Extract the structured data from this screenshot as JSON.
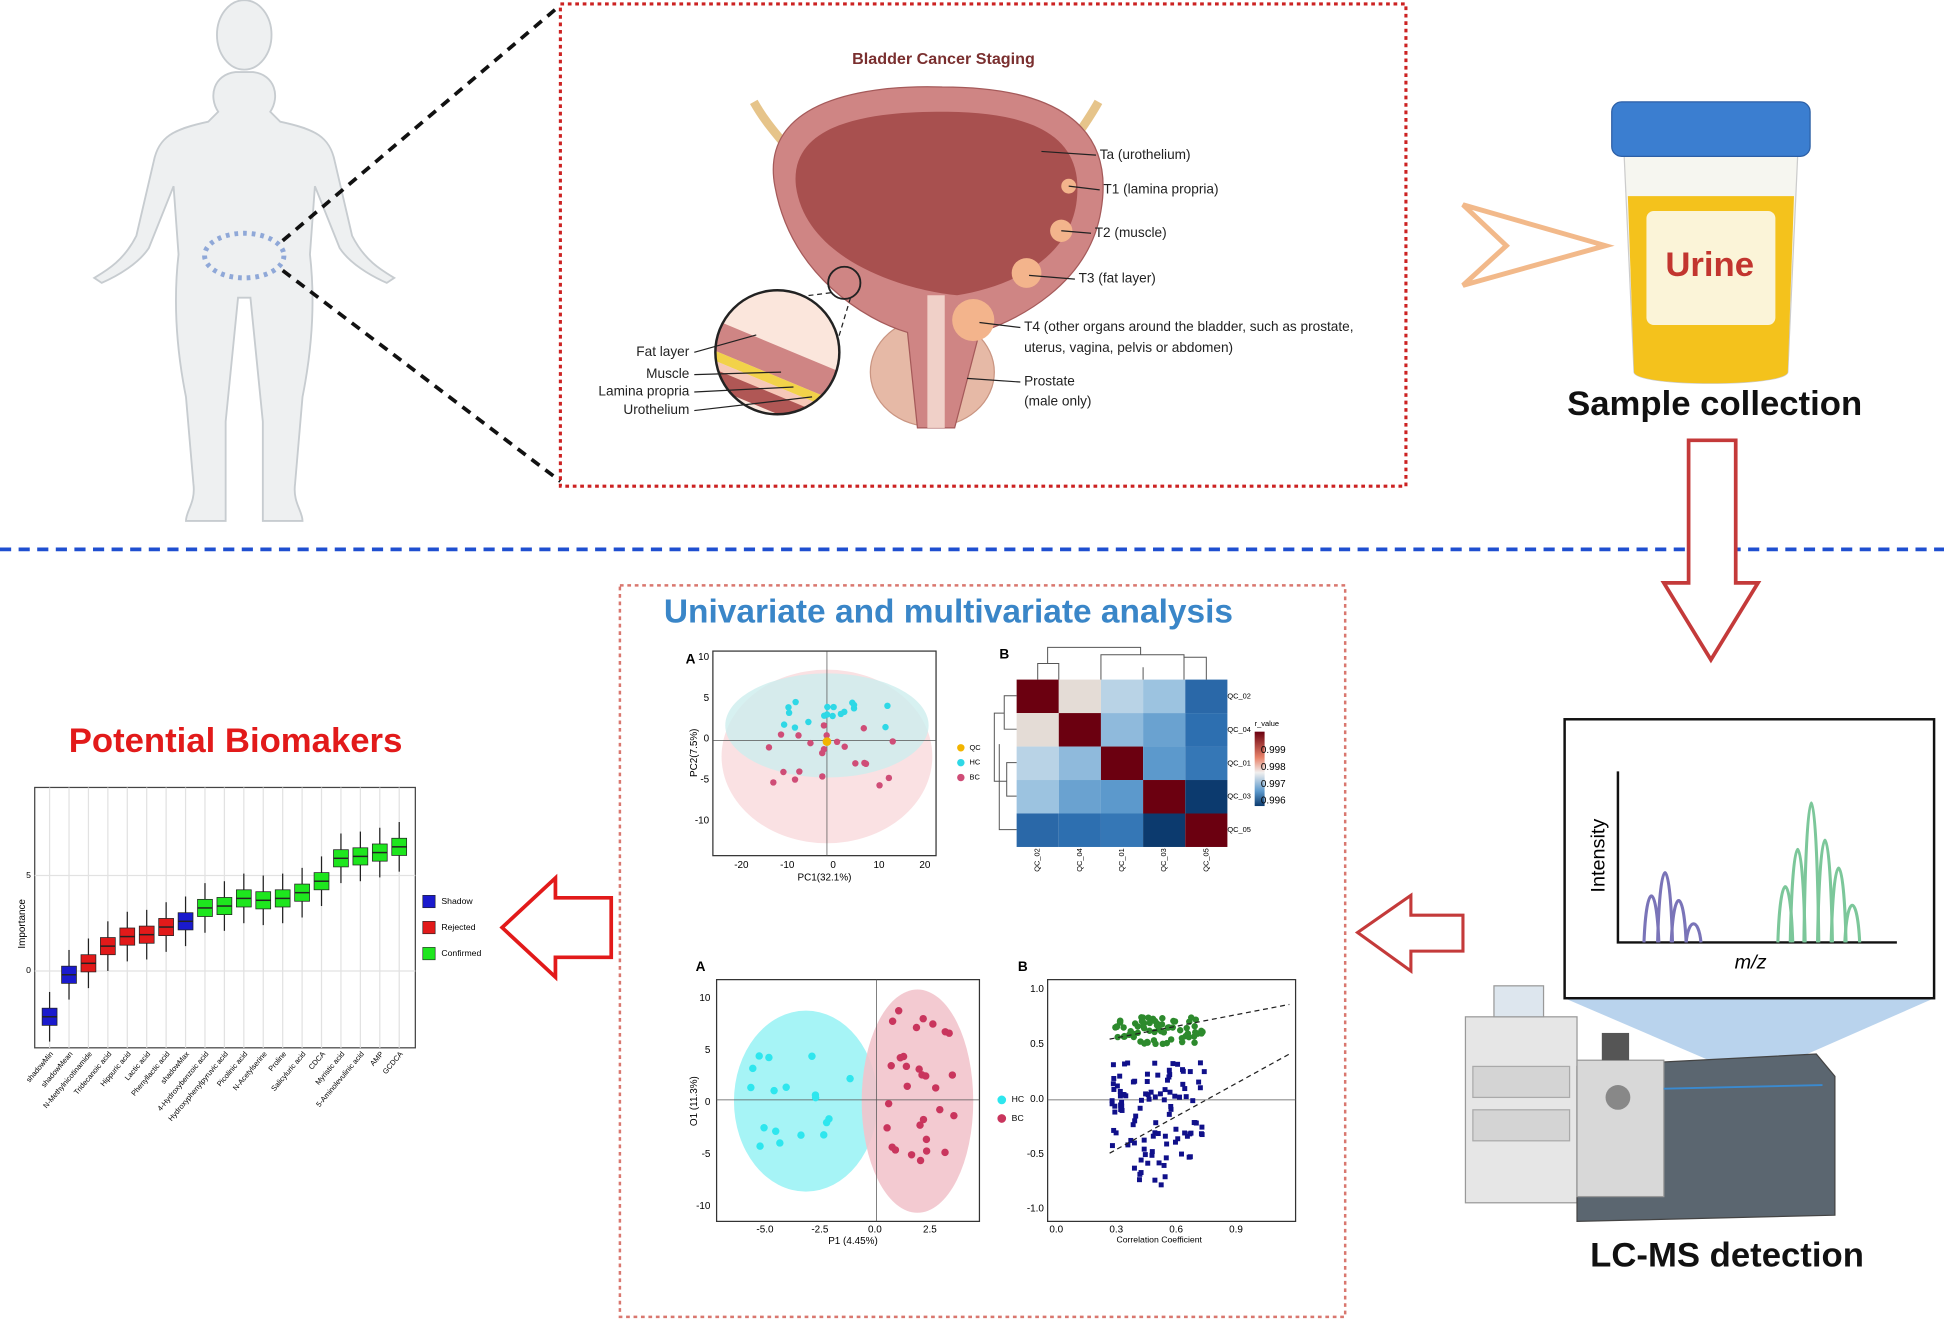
{
  "staging": {
    "title": "Bladder Cancer Staging",
    "stages": [
      "Ta (urothelium)",
      "T1 (lamina propria)",
      "T2 (muscle)",
      "T3 (fat layer)",
      "T4 (other organs around the bladder, such as prostate,",
      "uterus, vagina, pelvis or abdomen)"
    ],
    "prostate": [
      "Prostate",
      "(male only)"
    ],
    "layers": [
      "Fat layer",
      "Muscle",
      "Lamina propria",
      "Urothelium"
    ]
  },
  "urine": {
    "label": "Urine",
    "caption": "Sample collection"
  },
  "lcms": {
    "y_label": "Intensity",
    "x_label": "m/z",
    "caption": "LC-MS detection"
  },
  "analysis": {
    "title": "Univariate and multivariate analysis",
    "pca": {
      "panel": "A",
      "x_label": "PC1(32.1%)",
      "y_label": "PC2(7.5%)",
      "xticks": [
        -20,
        -10,
        0,
        10,
        20
      ],
      "yticks": [
        10,
        5,
        0,
        -5,
        -10
      ],
      "legend": [
        "QC",
        "HC",
        "BC"
      ]
    },
    "heatmap": {
      "panel": "B",
      "samples": [
        "QC_02",
        "QC_04",
        "QC_01",
        "QC_03",
        "QC_05"
      ],
      "legend_title": "r_value",
      "legend_ticks": [
        "0.999",
        "0.998",
        "0.997",
        "0.996"
      ]
    },
    "opls": {
      "panel": "A",
      "x_label": "P1 (4.45%)",
      "y_label": "O1 (11.3%)",
      "xticks": [
        "-5.0",
        "-2.5",
        "0.0",
        "2.5"
      ],
      "yticks": [
        10,
        5,
        0,
        -5,
        -10
      ],
      "legend": [
        "HC",
        "BC"
      ]
    },
    "splot": {
      "panel": "B",
      "x_label": "Correlation Coefficient",
      "xticks": [
        "0.0",
        "0.3",
        "0.6",
        "0.9"
      ],
      "yticks": [
        "1.0",
        "0.5",
        "0.0",
        "-0.5",
        "-1.0"
      ]
    }
  },
  "biomarkers": {
    "title": "Potential Biomakers",
    "y_label": "Importance",
    "yticks": [
      0,
      5
    ],
    "legend": [
      {
        "name": "Shadow",
        "color": "#1a1acd"
      },
      {
        "name": "Rejected",
        "color": "#e21a1a"
      },
      {
        "name": "Confirmed",
        "color": "#1ee61e"
      }
    ],
    "categories": [
      {
        "label": "shadowMin",
        "status": "Shadow",
        "median": -2.4
      },
      {
        "label": "shadowMean",
        "status": "Shadow",
        "median": -0.2
      },
      {
        "label": "N-Methylnicotinamide",
        "status": "Rejected",
        "median": 0.4
      },
      {
        "label": "Tridecanoic acid",
        "status": "Rejected",
        "median": 1.3
      },
      {
        "label": "Hippuric acid",
        "status": "Rejected",
        "median": 1.8
      },
      {
        "label": "Lactic acid",
        "status": "Rejected",
        "median": 1.9
      },
      {
        "label": "Phenyllactic acid",
        "status": "Rejected",
        "median": 2.3
      },
      {
        "label": "shadowMax",
        "status": "Shadow",
        "median": 2.6
      },
      {
        "label": "4-Hydroxybenzoic acid",
        "status": "Confirmed",
        "median": 3.3
      },
      {
        "label": "Hydroxyphenylpyruvic acid",
        "status": "Confirmed",
        "median": 3.4
      },
      {
        "label": "Picolinic acid",
        "status": "Confirmed",
        "median": 3.8
      },
      {
        "label": "N-Acetylserine",
        "status": "Confirmed",
        "median": 3.7
      },
      {
        "label": "Proline",
        "status": "Confirmed",
        "median": 3.8
      },
      {
        "label": "Salicyluric acid",
        "status": "Confirmed",
        "median": 4.1
      },
      {
        "label": "CDCA",
        "status": "Confirmed",
        "median": 4.7
      },
      {
        "label": "Myristic acid",
        "status": "Confirmed",
        "median": 5.9
      },
      {
        "label": "5-Aminolevulinic acid",
        "status": "Confirmed",
        "median": 6.0
      },
      {
        "label": "AMP",
        "status": "Confirmed",
        "median": 6.2
      },
      {
        "label": "GCDCA",
        "status": "Confirmed",
        "median": 6.5
      }
    ]
  }
}
